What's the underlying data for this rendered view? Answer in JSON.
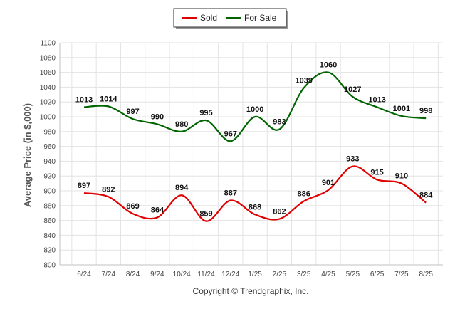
{
  "chart_data": {
    "type": "line",
    "x": [
      "6/24",
      "7/24",
      "8/24",
      "9/24",
      "10/24",
      "11/24",
      "12/24",
      "1/25",
      "2/25",
      "3/25",
      "4/25",
      "5/25",
      "6/25",
      "7/25",
      "8/25"
    ],
    "series": [
      {
        "name": "Sold",
        "color": "#e00000",
        "values": [
          897,
          892,
          869,
          864,
          894,
          859,
          887,
          868,
          862,
          886,
          901,
          933,
          915,
          910,
          884
        ]
      },
      {
        "name": "For Sale",
        "color": "#006400",
        "values": [
          1013,
          1014,
          997,
          990,
          980,
          995,
          967,
          1000,
          983,
          1039,
          1060,
          1027,
          1013,
          1001,
          998
        ]
      }
    ],
    "ylabel": "Average Price (in $,000)",
    "ylim": [
      800,
      1100
    ],
    "yticks": [
      800,
      820,
      840,
      860,
      880,
      900,
      920,
      940,
      960,
      980,
      1000,
      1020,
      1040,
      1060,
      1080,
      1100
    ],
    "grid": true,
    "legend_position": "top-center",
    "smooth": true,
    "data_labels": true
  },
  "footer": {
    "copyright": "Copyright © Trendgraphix, Inc."
  }
}
